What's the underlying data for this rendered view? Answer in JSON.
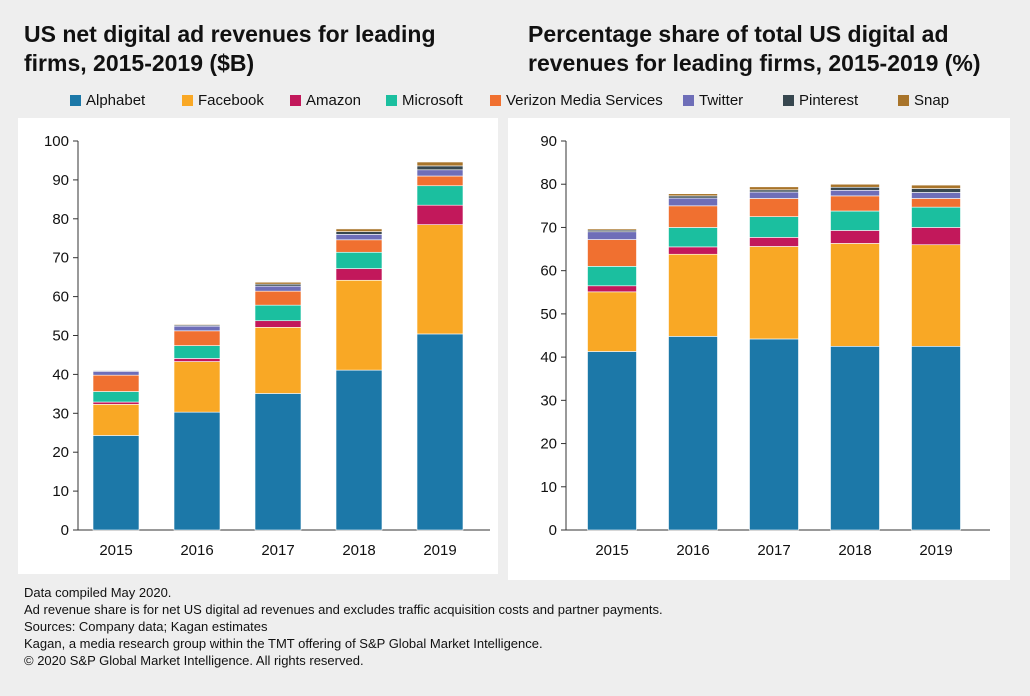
{
  "colors": {
    "Alphabet": "#1c78a8",
    "Facebook": "#f9a825",
    "Amazon": "#c2185b",
    "Microsoft": "#1bbf9f",
    "Verizon Media Services": "#f07030",
    "Twitter": "#6e6eb8",
    "Pinterest": "#37474f",
    "Snap": "#a8742a"
  },
  "legend": [
    "Alphabet",
    "Facebook",
    "Amazon",
    "Microsoft",
    "Verizon Media Services",
    "Twitter",
    "Pinterest",
    "Snap"
  ],
  "chart_data": [
    {
      "type": "bar",
      "stacked": true,
      "title": "US net digital ad revenues for leading firms, 2015-2019 ($B)",
      "categories": [
        "2015",
        "2016",
        "2017",
        "2018",
        "2019"
      ],
      "yticks": [
        "0",
        "10",
        "20",
        "30",
        "40",
        "50",
        "60",
        "70",
        "80",
        "90",
        "100"
      ],
      "ylim": [
        0,
        100
      ],
      "grid": false,
      "series": [
        {
          "name": "Alphabet",
          "values": [
            24.3,
            30.3,
            35.1,
            41.1,
            50.4
          ]
        },
        {
          "name": "Facebook",
          "values": [
            8.0,
            13.0,
            17.0,
            23.1,
            28.1
          ]
        },
        {
          "name": "Amazon",
          "values": [
            0.6,
            0.8,
            1.7,
            3.0,
            5.0
          ]
        },
        {
          "name": "Microsoft",
          "values": [
            2.7,
            3.3,
            4.0,
            4.2,
            5.0
          ]
        },
        {
          "name": "Verizon Media Services",
          "values": [
            4.2,
            3.8,
            3.6,
            3.2,
            2.5
          ]
        },
        {
          "name": "Twitter",
          "values": [
            1.0,
            1.2,
            1.3,
            1.4,
            1.6
          ]
        },
        {
          "name": "Pinterest",
          "values": [
            0.2,
            0.3,
            0.5,
            0.7,
            1.0
          ]
        },
        {
          "name": "Snap",
          "values": [
            0.1,
            0.2,
            0.5,
            0.7,
            1.0
          ]
        }
      ]
    },
    {
      "type": "bar",
      "stacked": true,
      "title": "Percentage share of total US digital ad revenues for leading firms, 2015-2019 (%)",
      "categories": [
        "2015",
        "2016",
        "2017",
        "2018",
        "2019"
      ],
      "yticks": [
        "0",
        "10",
        "20",
        "30",
        "40",
        "50",
        "60",
        "70",
        "80",
        "90"
      ],
      "ylim": [
        0,
        90
      ],
      "grid": false,
      "series": [
        {
          "name": "Alphabet",
          "values": [
            41.3,
            44.8,
            44.2,
            42.5,
            42.5
          ]
        },
        {
          "name": "Facebook",
          "values": [
            13.8,
            19.0,
            21.4,
            23.8,
            23.5
          ]
        },
        {
          "name": "Amazon",
          "values": [
            1.4,
            1.7,
            2.1,
            3.0,
            4.0
          ]
        },
        {
          "name": "Microsoft",
          "values": [
            4.5,
            4.5,
            4.8,
            4.5,
            4.7
          ]
        },
        {
          "name": "Verizon Media Services",
          "values": [
            6.2,
            5.0,
            4.2,
            3.5,
            2.0
          ]
        },
        {
          "name": "Twitter",
          "values": [
            1.8,
            1.8,
            1.5,
            1.3,
            1.4
          ]
        },
        {
          "name": "Pinterest",
          "values": [
            0.4,
            0.5,
            0.5,
            0.7,
            0.9
          ]
        },
        {
          "name": "Snap",
          "values": [
            0.3,
            0.5,
            0.7,
            0.7,
            0.8
          ]
        }
      ]
    }
  ],
  "notes": [
    "Data compiled May 2020.",
    "Ad revenue share is for net US digital ad revenues and excludes traffic acquisition costs and partner payments.",
    "Sources: Company data; Kagan estimates",
    "Kagan, a media research group within the TMT offering of S&P Global Market Intelligence.",
    "© 2020 S&P Global Market Intelligence. All rights reserved."
  ]
}
